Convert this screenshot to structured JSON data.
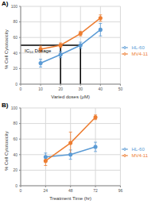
{
  "chart_data": [
    {
      "type": "line",
      "title": "A)",
      "x_label": "Varied doses (μM)",
      "y_label": "% Cell Cytotoxicity",
      "x": [
        10,
        20,
        30,
        40
      ],
      "xlim": [
        0,
        50
      ],
      "xticks": [
        0,
        10,
        20,
        30,
        40,
        50
      ],
      "ylim": [
        0,
        100
      ],
      "yticks": [
        0,
        20,
        40,
        60,
        80,
        100
      ],
      "grid": true,
      "legend": "right",
      "series": [
        {
          "name": "HL-60",
          "color": "#5b9bd5",
          "marker": "circle",
          "values": [
            27,
            38,
            50,
            70
          ],
          "errors": [
            5,
            4,
            4,
            8
          ]
        },
        {
          "name": "MV4-11",
          "color": "#ed7d31",
          "marker": "circle",
          "values": [
            45,
            50,
            65,
            85
          ],
          "errors": [
            4,
            3,
            3,
            4
          ]
        }
      ],
      "annotation": {
        "text": "IC₅₀ Dosage",
        "y": 50,
        "x": [
          20,
          30
        ]
      }
    },
    {
      "type": "line",
      "title": "B)",
      "x_label": "Treatment Time (hr)",
      "y_label": "% Cell Cytotoxicity",
      "x": [
        24,
        48,
        72
      ],
      "xlim": [
        0,
        96
      ],
      "xticks": [
        0,
        24,
        48,
        72,
        96
      ],
      "ylim": [
        0,
        100
      ],
      "yticks": [
        0,
        20,
        40,
        60,
        80,
        100
      ],
      "grid": true,
      "legend": "right",
      "series": [
        {
          "name": "HL-60",
          "color": "#5b9bd5",
          "marker": "circle",
          "values": [
            37,
            40,
            50
          ],
          "errors": [
            5,
            6,
            6
          ]
        },
        {
          "name": "MV4-11",
          "color": "#ed7d31",
          "marker": "circle",
          "values": [
            32,
            55,
            88
          ],
          "errors": [
            6,
            14,
            3
          ]
        }
      ]
    }
  ]
}
